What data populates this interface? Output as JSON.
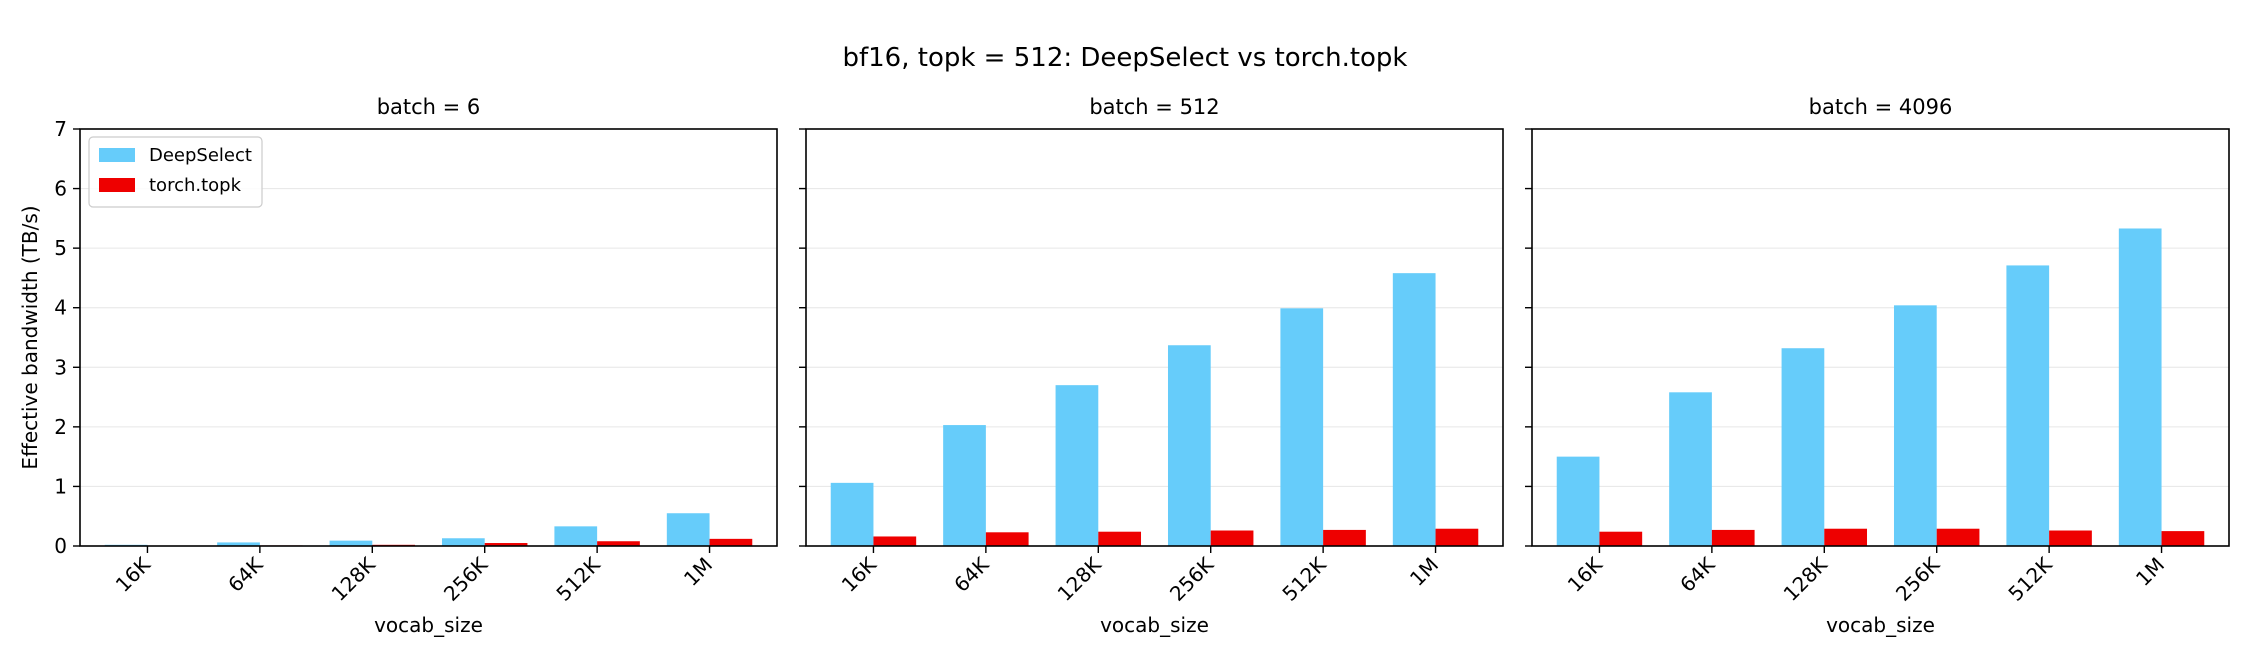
{
  "figure": {
    "title": "bf16, topk = 512: DeepSelect vs torch.topk"
  },
  "chart_data": [
    {
      "type": "bar",
      "title": "batch = 6",
      "xlabel": "vocab_size",
      "ylabel": "Effective bandwidth (TB/s)",
      "ylim": [
        0,
        7
      ],
      "yticks": [
        0,
        1,
        2,
        3,
        4,
        5,
        6,
        7
      ],
      "grid": "y",
      "legend": "top-left",
      "categories": [
        "16K",
        "64K",
        "128K",
        "256K",
        "512K",
        "1M"
      ],
      "series": [
        {
          "name": "DeepSelect",
          "color": "#66ccfa",
          "values": [
            0.02,
            0.06,
            0.09,
            0.13,
            0.33,
            0.55
          ]
        },
        {
          "name": "torch.topk",
          "color": "#ee0000",
          "values": [
            0.005,
            0.01,
            0.02,
            0.05,
            0.08,
            0.12
          ]
        }
      ]
    },
    {
      "type": "bar",
      "title": "batch = 512",
      "xlabel": "vocab_size",
      "ylabel": "",
      "ylim": [
        0,
        7
      ],
      "yticks": [
        0,
        1,
        2,
        3,
        4,
        5,
        6,
        7
      ],
      "grid": "y",
      "categories": [
        "16K",
        "64K",
        "128K",
        "256K",
        "512K",
        "1M"
      ],
      "series": [
        {
          "name": "DeepSelect",
          "color": "#66ccfa",
          "values": [
            1.06,
            2.03,
            2.7,
            3.37,
            3.99,
            4.58
          ]
        },
        {
          "name": "torch.topk",
          "color": "#ee0000",
          "values": [
            0.16,
            0.23,
            0.24,
            0.26,
            0.27,
            0.29
          ]
        }
      ]
    },
    {
      "type": "bar",
      "title": "batch = 4096",
      "xlabel": "vocab_size",
      "ylabel": "",
      "ylim": [
        0,
        7
      ],
      "yticks": [
        0,
        1,
        2,
        3,
        4,
        5,
        6,
        7
      ],
      "grid": "y",
      "categories": [
        "16K",
        "64K",
        "128K",
        "256K",
        "512K",
        "1M"
      ],
      "series": [
        {
          "name": "DeepSelect",
          "color": "#66ccfa",
          "values": [
            1.5,
            2.58,
            3.32,
            4.04,
            4.71,
            5.33
          ]
        },
        {
          "name": "torch.topk",
          "color": "#ee0000",
          "values": [
            0.24,
            0.27,
            0.29,
            0.29,
            0.26,
            0.25
          ]
        }
      ]
    }
  ]
}
